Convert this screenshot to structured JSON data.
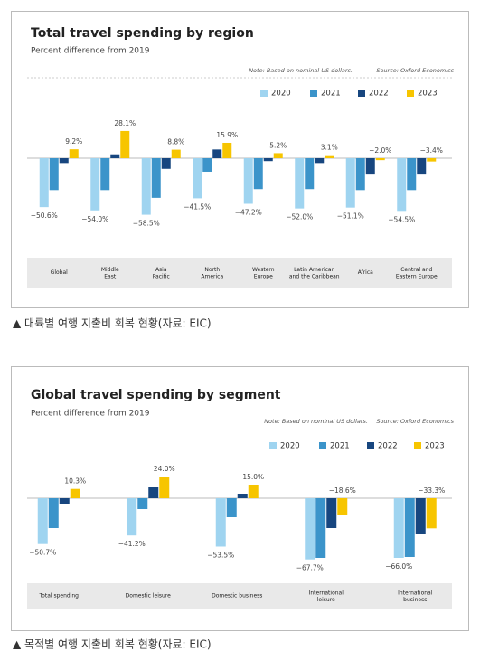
{
  "chart_data": [
    {
      "type": "bar",
      "title": "Total travel spending by region",
      "subtitle": "Percent difference from 2019",
      "note": "Note: Based on nominal US dollars.",
      "source": "Source: Oxford Economics",
      "categories": [
        "Global",
        "Middle\nEast",
        "Asia\nPacific",
        "North\nAmerica",
        "Western\nEurope",
        "Latin American\nand the Caribbean",
        "Africa",
        "Central and\nEastern Europe"
      ],
      "series": [
        {
          "name": "2020",
          "color": "#9fd4f0",
          "values": [
            -50.6,
            -54.0,
            -58.5,
            -41.5,
            -47.2,
            -52.0,
            -51.1,
            -54.5
          ],
          "value_labels": [
            "−50.6%",
            "−54.0%",
            "−58.5%",
            "−41.5%",
            "−47.2%",
            "−52.0%",
            "−51.1%",
            "−54.5%"
          ]
        },
        {
          "name": "2021",
          "color": "#3b94ca",
          "values": [
            -33,
            -33,
            -41,
            -14,
            -32,
            -32,
            -33,
            -33
          ]
        },
        {
          "name": "2022",
          "color": "#17467f",
          "values": [
            -5,
            4,
            -11,
            9,
            -3,
            -5,
            -16,
            -16
          ]
        },
        {
          "name": "2023",
          "color": "#f7c500",
          "values": [
            9.2,
            28.1,
            8.8,
            15.9,
            5.2,
            3.1,
            -2.0,
            -3.4
          ],
          "value_labels": [
            "9.2%",
            "28.1%",
            "8.8%",
            "15.9%",
            "5.2%",
            "3.1%",
            "−2.0%",
            "−3.4%"
          ]
        }
      ]
    },
    {
      "type": "bar",
      "title": "Global travel spending by segment",
      "subtitle": "Percent difference from 2019",
      "note": "Note: Based on nominal US dollars.",
      "source": "Source: Oxford Economics",
      "categories": [
        "Total spending",
        "Domestic leisure",
        "Domestic business",
        "International\nleisure",
        "International\nbusiness"
      ],
      "series": [
        {
          "name": "2020",
          "color": "#9fd4f0",
          "values": [
            -50.7,
            -41.2,
            -53.5,
            -67.7,
            -66.0
          ],
          "value_labels": [
            "−50.7%",
            "−41.2%",
            "−53.5%",
            "−67.7%",
            "−66.0%"
          ]
        },
        {
          "name": "2021",
          "color": "#3b94ca",
          "values": [
            -33,
            -12,
            -21,
            -66,
            -65
          ]
        },
        {
          "name": "2022",
          "color": "#17467f",
          "values": [
            -6,
            12,
            5,
            -33,
            -40
          ]
        },
        {
          "name": "2023",
          "color": "#f7c500",
          "values": [
            10.3,
            24.0,
            15.0,
            -18.6,
            -33.3
          ],
          "value_labels": [
            "10.3%",
            "24.0%",
            "15.0%",
            "−18.6%",
            "−33.3%"
          ]
        }
      ]
    }
  ],
  "captions": [
    "▲ 대륙별 여행 지출비 회복 현황(자료: EIC)",
    "▲ 목적별 여행 지출비 회복 현황(자료: EIC)"
  ]
}
